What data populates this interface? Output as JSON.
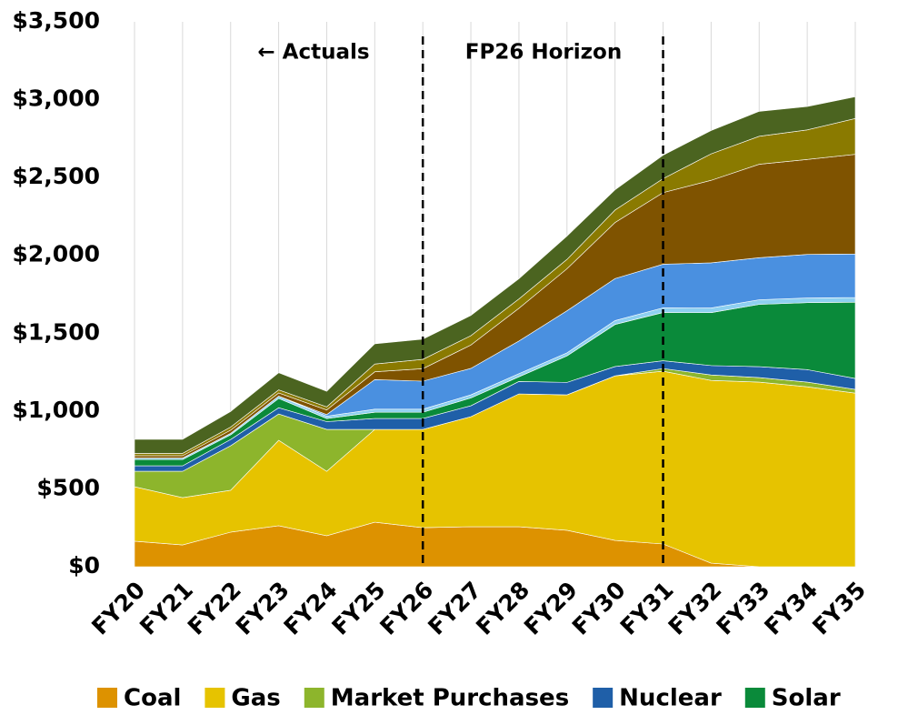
{
  "chart_data": {
    "type": "stacked_area",
    "annotations": [
      "← Actuals",
      "FP26 Horizon"
    ],
    "vlines": [
      "FY26",
      "FY31"
    ],
    "categories": [
      "FY20",
      "FY21",
      "FY22",
      "FY23",
      "FY24",
      "FY25",
      "FY26",
      "FY27",
      "FY28",
      "FY29",
      "FY30",
      "FY31",
      "FY32",
      "FY33",
      "FY34",
      "FY35"
    ],
    "series": [
      {
        "name": "Coal",
        "color": "#dd9200",
        "values": [
          164,
          140,
          222,
          263,
          199,
          286,
          251,
          257,
          257,
          234,
          169,
          146,
          23,
          0,
          0,
          0
        ]
      },
      {
        "name": "Gas",
        "color": "#e6c300",
        "values": [
          350,
          304,
          269,
          549,
          414,
          596,
          631,
          707,
          853,
          870,
          1057,
          1110,
          1174,
          1186,
          1156,
          1115
        ]
      },
      {
        "name": "Market Purchases",
        "color": "#8db52c",
        "values": [
          99,
          169,
          286,
          169,
          269,
          0,
          0,
          0,
          0,
          0,
          0,
          17,
          35,
          29,
          30,
          24
        ]
      },
      {
        "name": "Nuclear",
        "color": "#1f5fa8",
        "values": [
          35,
          35,
          40,
          40,
          50,
          70,
          70,
          70,
          80,
          80,
          60,
          50,
          60,
          70,
          80,
          70
        ]
      },
      {
        "name": "Solar",
        "color": "#0a8a3a",
        "values": [
          40,
          40,
          30,
          60,
          20,
          40,
          40,
          50,
          30,
          170,
          270,
          310,
          340,
          400,
          430,
          490
        ]
      },
      {
        "color": "#8ed0f0",
        "values": [
          10,
          10,
          10,
          15,
          15,
          20,
          20,
          20,
          20,
          20,
          25,
          30,
          30,
          30,
          30,
          30
        ]
      },
      {
        "color": "#4a90e0",
        "values": [
          0,
          0,
          0,
          0,
          10,
          190,
          180,
          170,
          210,
          270,
          270,
          280,
          290,
          270,
          280,
          280
        ]
      },
      {
        "color": "#7f5300",
        "values": [
          15,
          15,
          20,
          20,
          30,
          50,
          80,
          150,
          210,
          270,
          360,
          460,
          530,
          600,
          610,
          640
        ]
      },
      {
        "color": "#8a7a00",
        "values": [
          15,
          15,
          20,
          20,
          20,
          50,
          60,
          60,
          60,
          60,
          80,
          90,
          170,
          180,
          190,
          230
        ]
      },
      {
        "color": "#4b6420",
        "values": [
          90,
          90,
          100,
          110,
          100,
          130,
          130,
          130,
          130,
          150,
          130,
          150,
          150,
          160,
          150,
          140
        ]
      }
    ],
    "ylim": [
      0,
      3500
    ],
    "yticks": [
      {
        "value": 0,
        "label": "$0"
      },
      {
        "value": 500,
        "label": "$500"
      },
      {
        "value": 1000,
        "label": "$1,000"
      },
      {
        "value": 1500,
        "label": "$1,500"
      },
      {
        "value": 2000,
        "label": "$2,000"
      },
      {
        "value": 2500,
        "label": "$2,500"
      },
      {
        "value": 3000,
        "label": "$3,000"
      },
      {
        "value": 3500,
        "label": "$3,500"
      }
    ],
    "grid": true,
    "legend": "bottom"
  }
}
